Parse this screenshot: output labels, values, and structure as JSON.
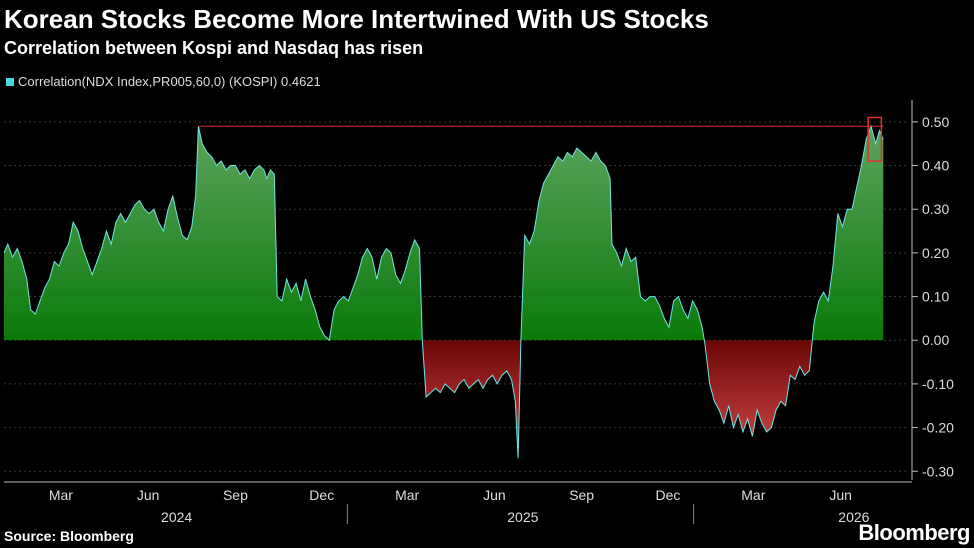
{
  "title": "Korean Stocks Become More Intertwined With US Stocks",
  "subtitle": "Correlation between Kospi and Nasdaq has risen",
  "source": "Source: Bloomberg",
  "logo": "Bloomberg",
  "colors": {
    "positive_top": "#5fa45f",
    "positive_bottom": "#0a7a0a",
    "negative_top": "#6b0606",
    "negative_bottom": "#d54b4b",
    "line": "#6ee6e6",
    "grid": "#3a3a3a",
    "annotation": "#e03030"
  },
  "chart_data": {
    "type": "area",
    "legend": {
      "label": "Correlation(NDX Index,PR005,60,0) (KOSPI) 0.4621",
      "color": "#4fd8e0",
      "position": "top-left"
    },
    "ylim": [
      -0.32,
      0.55
    ],
    "y_ticks": [
      "0.50",
      "0.40",
      "0.30",
      "0.20",
      "0.10",
      "0.00",
      "-0.10",
      "-0.20",
      "-0.30"
    ],
    "y_tick_values": [
      0.5,
      0.4,
      0.3,
      0.2,
      0.1,
      0.0,
      -0.1,
      -0.2,
      -0.3
    ],
    "xlim": [
      "2024-01-01",
      "2026-08-10"
    ],
    "x_ticks": [
      {
        "label": "Mar",
        "date": "2024-03-01"
      },
      {
        "label": "Jun",
        "date": "2024-06-01"
      },
      {
        "label": "Sep",
        "date": "2024-09-01"
      },
      {
        "label": "Dec",
        "date": "2024-12-01"
      },
      {
        "label": "Mar",
        "date": "2025-03-01"
      },
      {
        "label": "Jun",
        "date": "2025-06-01"
      },
      {
        "label": "Sep",
        "date": "2025-09-01"
      },
      {
        "label": "Dec",
        "date": "2025-12-01"
      },
      {
        "label": "Mar",
        "date": "2026-03-01"
      },
      {
        "label": "Jun",
        "date": "2026-06-01"
      }
    ],
    "years": [
      {
        "label": "2024",
        "date": "2024-07-01"
      },
      {
        "label": "2025",
        "date": "2025-07-01"
      },
      {
        "label": "2026",
        "date": "2026-06-15"
      }
    ],
    "year_dividers": [
      "2024-12-28",
      "2025-12-28"
    ],
    "grid": true,
    "points": [
      {
        "x": "2024-01-01",
        "y": 0.2
      },
      {
        "x": "2024-01-05",
        "y": 0.22
      },
      {
        "x": "2024-01-10",
        "y": 0.19
      },
      {
        "x": "2024-01-15",
        "y": 0.21
      },
      {
        "x": "2024-01-20",
        "y": 0.18
      },
      {
        "x": "2024-01-25",
        "y": 0.14
      },
      {
        "x": "2024-01-29",
        "y": 0.07
      },
      {
        "x": "2024-02-03",
        "y": 0.06
      },
      {
        "x": "2024-02-08",
        "y": 0.09
      },
      {
        "x": "2024-02-13",
        "y": 0.12
      },
      {
        "x": "2024-02-18",
        "y": 0.14
      },
      {
        "x": "2024-02-23",
        "y": 0.18
      },
      {
        "x": "2024-02-28",
        "y": 0.17
      },
      {
        "x": "2024-03-04",
        "y": 0.2
      },
      {
        "x": "2024-03-09",
        "y": 0.22
      },
      {
        "x": "2024-03-14",
        "y": 0.27
      },
      {
        "x": "2024-03-19",
        "y": 0.25
      },
      {
        "x": "2024-03-24",
        "y": 0.21
      },
      {
        "x": "2024-03-29",
        "y": 0.18
      },
      {
        "x": "2024-04-03",
        "y": 0.15
      },
      {
        "x": "2024-04-08",
        "y": 0.18
      },
      {
        "x": "2024-04-13",
        "y": 0.21
      },
      {
        "x": "2024-04-18",
        "y": 0.25
      },
      {
        "x": "2024-04-23",
        "y": 0.22
      },
      {
        "x": "2024-04-28",
        "y": 0.27
      },
      {
        "x": "2024-05-03",
        "y": 0.29
      },
      {
        "x": "2024-05-08",
        "y": 0.27
      },
      {
        "x": "2024-05-13",
        "y": 0.29
      },
      {
        "x": "2024-05-18",
        "y": 0.31
      },
      {
        "x": "2024-05-23",
        "y": 0.32
      },
      {
        "x": "2024-05-28",
        "y": 0.3
      },
      {
        "x": "2024-06-02",
        "y": 0.29
      },
      {
        "x": "2024-06-07",
        "y": 0.3
      },
      {
        "x": "2024-06-12",
        "y": 0.27
      },
      {
        "x": "2024-06-17",
        "y": 0.25
      },
      {
        "x": "2024-06-22",
        "y": 0.3
      },
      {
        "x": "2024-06-27",
        "y": 0.33
      },
      {
        "x": "2024-07-02",
        "y": 0.28
      },
      {
        "x": "2024-07-07",
        "y": 0.24
      },
      {
        "x": "2024-07-12",
        "y": 0.23
      },
      {
        "x": "2024-07-17",
        "y": 0.26
      },
      {
        "x": "2024-07-21",
        "y": 0.33
      },
      {
        "x": "2024-07-24",
        "y": 0.49
      },
      {
        "x": "2024-07-28",
        "y": 0.45
      },
      {
        "x": "2024-08-02",
        "y": 0.43
      },
      {
        "x": "2024-08-07",
        "y": 0.42
      },
      {
        "x": "2024-08-12",
        "y": 0.4
      },
      {
        "x": "2024-08-17",
        "y": 0.41
      },
      {
        "x": "2024-08-22",
        "y": 0.39
      },
      {
        "x": "2024-08-27",
        "y": 0.4
      },
      {
        "x": "2024-09-01",
        "y": 0.4
      },
      {
        "x": "2024-09-06",
        "y": 0.38
      },
      {
        "x": "2024-09-11",
        "y": 0.39
      },
      {
        "x": "2024-09-16",
        "y": 0.37
      },
      {
        "x": "2024-09-21",
        "y": 0.39
      },
      {
        "x": "2024-09-26",
        "y": 0.4
      },
      {
        "x": "2024-10-01",
        "y": 0.39
      },
      {
        "x": "2024-10-04",
        "y": 0.37
      },
      {
        "x": "2024-10-08",
        "y": 0.39
      },
      {
        "x": "2024-10-12",
        "y": 0.38
      },
      {
        "x": "2024-10-15",
        "y": 0.1
      },
      {
        "x": "2024-10-20",
        "y": 0.09
      },
      {
        "x": "2024-10-25",
        "y": 0.14
      },
      {
        "x": "2024-10-30",
        "y": 0.11
      },
      {
        "x": "2024-11-04",
        "y": 0.13
      },
      {
        "x": "2024-11-09",
        "y": 0.09
      },
      {
        "x": "2024-11-14",
        "y": 0.14
      },
      {
        "x": "2024-11-19",
        "y": 0.1
      },
      {
        "x": "2024-11-24",
        "y": 0.07
      },
      {
        "x": "2024-11-29",
        "y": 0.03
      },
      {
        "x": "2024-12-04",
        "y": 0.01
      },
      {
        "x": "2024-12-09",
        "y": 0.0
      },
      {
        "x": "2024-12-14",
        "y": 0.07
      },
      {
        "x": "2024-12-19",
        "y": 0.09
      },
      {
        "x": "2024-12-24",
        "y": 0.1
      },
      {
        "x": "2024-12-29",
        "y": 0.09
      },
      {
        "x": "2025-01-03",
        "y": 0.12
      },
      {
        "x": "2025-01-08",
        "y": 0.15
      },
      {
        "x": "2025-01-13",
        "y": 0.19
      },
      {
        "x": "2025-01-18",
        "y": 0.21
      },
      {
        "x": "2025-01-23",
        "y": 0.19
      },
      {
        "x": "2025-01-28",
        "y": 0.14
      },
      {
        "x": "2025-02-02",
        "y": 0.19
      },
      {
        "x": "2025-02-07",
        "y": 0.21
      },
      {
        "x": "2025-02-12",
        "y": 0.2
      },
      {
        "x": "2025-02-17",
        "y": 0.15
      },
      {
        "x": "2025-02-22",
        "y": 0.13
      },
      {
        "x": "2025-02-27",
        "y": 0.16
      },
      {
        "x": "2025-03-04",
        "y": 0.2
      },
      {
        "x": "2025-03-09",
        "y": 0.23
      },
      {
        "x": "2025-03-14",
        "y": 0.21
      },
      {
        "x": "2025-03-17",
        "y": 0.0
      },
      {
        "x": "2025-03-21",
        "y": -0.13
      },
      {
        "x": "2025-03-26",
        "y": -0.12
      },
      {
        "x": "2025-03-31",
        "y": -0.11
      },
      {
        "x": "2025-04-05",
        "y": -0.12
      },
      {
        "x": "2025-04-10",
        "y": -0.1
      },
      {
        "x": "2025-04-15",
        "y": -0.11
      },
      {
        "x": "2025-04-20",
        "y": -0.12
      },
      {
        "x": "2025-04-25",
        "y": -0.1
      },
      {
        "x": "2025-04-30",
        "y": -0.09
      },
      {
        "x": "2025-05-05",
        "y": -0.11
      },
      {
        "x": "2025-05-10",
        "y": -0.1
      },
      {
        "x": "2025-05-15",
        "y": -0.09
      },
      {
        "x": "2025-05-20",
        "y": -0.11
      },
      {
        "x": "2025-05-25",
        "y": -0.09
      },
      {
        "x": "2025-05-30",
        "y": -0.08
      },
      {
        "x": "2025-06-04",
        "y": -0.1
      },
      {
        "x": "2025-06-09",
        "y": -0.08
      },
      {
        "x": "2025-06-14",
        "y": -0.07
      },
      {
        "x": "2025-06-19",
        "y": -0.09
      },
      {
        "x": "2025-06-23",
        "y": -0.14
      },
      {
        "x": "2025-06-26",
        "y": -0.27
      },
      {
        "x": "2025-06-29",
        "y": 0.0
      },
      {
        "x": "2025-07-03",
        "y": 0.24
      },
      {
        "x": "2025-07-08",
        "y": 0.22
      },
      {
        "x": "2025-07-13",
        "y": 0.25
      },
      {
        "x": "2025-07-18",
        "y": 0.32
      },
      {
        "x": "2025-07-23",
        "y": 0.36
      },
      {
        "x": "2025-07-28",
        "y": 0.38
      },
      {
        "x": "2025-08-02",
        "y": 0.4
      },
      {
        "x": "2025-08-07",
        "y": 0.42
      },
      {
        "x": "2025-08-12",
        "y": 0.41
      },
      {
        "x": "2025-08-17",
        "y": 0.43
      },
      {
        "x": "2025-08-22",
        "y": 0.42
      },
      {
        "x": "2025-08-27",
        "y": 0.44
      },
      {
        "x": "2025-09-01",
        "y": 0.43
      },
      {
        "x": "2025-09-06",
        "y": 0.42
      },
      {
        "x": "2025-09-11",
        "y": 0.41
      },
      {
        "x": "2025-09-16",
        "y": 0.43
      },
      {
        "x": "2025-09-21",
        "y": 0.41
      },
      {
        "x": "2025-09-26",
        "y": 0.4
      },
      {
        "x": "2025-10-01",
        "y": 0.37
      },
      {
        "x": "2025-10-03",
        "y": 0.22
      },
      {
        "x": "2025-10-08",
        "y": 0.2
      },
      {
        "x": "2025-10-13",
        "y": 0.17
      },
      {
        "x": "2025-10-18",
        "y": 0.21
      },
      {
        "x": "2025-10-23",
        "y": 0.18
      },
      {
        "x": "2025-10-28",
        "y": 0.19
      },
      {
        "x": "2025-11-02",
        "y": 0.1
      },
      {
        "x": "2025-11-07",
        "y": 0.09
      },
      {
        "x": "2025-11-12",
        "y": 0.1
      },
      {
        "x": "2025-11-17",
        "y": 0.1
      },
      {
        "x": "2025-11-22",
        "y": 0.08
      },
      {
        "x": "2025-11-27",
        "y": 0.05
      },
      {
        "x": "2025-12-02",
        "y": 0.03
      },
      {
        "x": "2025-12-07",
        "y": 0.09
      },
      {
        "x": "2025-12-12",
        "y": 0.1
      },
      {
        "x": "2025-12-17",
        "y": 0.07
      },
      {
        "x": "2025-12-22",
        "y": 0.05
      },
      {
        "x": "2025-12-27",
        "y": 0.09
      },
      {
        "x": "2026-01-01",
        "y": 0.07
      },
      {
        "x": "2026-01-06",
        "y": 0.03
      },
      {
        "x": "2026-01-09",
        "y": -0.01
      },
      {
        "x": "2026-01-14",
        "y": -0.1
      },
      {
        "x": "2026-01-19",
        "y": -0.14
      },
      {
        "x": "2026-01-24",
        "y": -0.16
      },
      {
        "x": "2026-01-29",
        "y": -0.19
      },
      {
        "x": "2026-02-03",
        "y": -0.15
      },
      {
        "x": "2026-02-08",
        "y": -0.2
      },
      {
        "x": "2026-02-13",
        "y": -0.17
      },
      {
        "x": "2026-02-18",
        "y": -0.21
      },
      {
        "x": "2026-02-23",
        "y": -0.18
      },
      {
        "x": "2026-02-28",
        "y": -0.22
      },
      {
        "x": "2026-03-05",
        "y": -0.16
      },
      {
        "x": "2026-03-10",
        "y": -0.19
      },
      {
        "x": "2026-03-15",
        "y": -0.21
      },
      {
        "x": "2026-03-20",
        "y": -0.2
      },
      {
        "x": "2026-03-25",
        "y": -0.16
      },
      {
        "x": "2026-03-30",
        "y": -0.14
      },
      {
        "x": "2026-04-04",
        "y": -0.15
      },
      {
        "x": "2026-04-09",
        "y": -0.08
      },
      {
        "x": "2026-04-14",
        "y": -0.09
      },
      {
        "x": "2026-04-19",
        "y": -0.06
      },
      {
        "x": "2026-04-24",
        "y": -0.08
      },
      {
        "x": "2026-04-29",
        "y": -0.07
      },
      {
        "x": "2026-05-04",
        "y": 0.04
      },
      {
        "x": "2026-05-09",
        "y": 0.09
      },
      {
        "x": "2026-05-14",
        "y": 0.11
      },
      {
        "x": "2026-05-19",
        "y": 0.09
      },
      {
        "x": "2026-05-24",
        "y": 0.17
      },
      {
        "x": "2026-05-29",
        "y": 0.29
      },
      {
        "x": "2026-06-03",
        "y": 0.26
      },
      {
        "x": "2026-06-08",
        "y": 0.3
      },
      {
        "x": "2026-06-13",
        "y": 0.3
      },
      {
        "x": "2026-06-18",
        "y": 0.35
      },
      {
        "x": "2026-06-23",
        "y": 0.4
      },
      {
        "x": "2026-06-28",
        "y": 0.46
      },
      {
        "x": "2026-07-03",
        "y": 0.49
      },
      {
        "x": "2026-07-08",
        "y": 0.45
      },
      {
        "x": "2026-07-12",
        "y": 0.48
      },
      {
        "x": "2026-07-16",
        "y": 0.46
      }
    ],
    "annotations": {
      "reference_value": 0.49,
      "reference_from": "2024-07-24",
      "reference_to": "2026-07-16",
      "box_from": "2026-06-30",
      "box_to": "2026-07-14",
      "box_y_from": 0.41,
      "box_y_to": 0.51
    }
  }
}
